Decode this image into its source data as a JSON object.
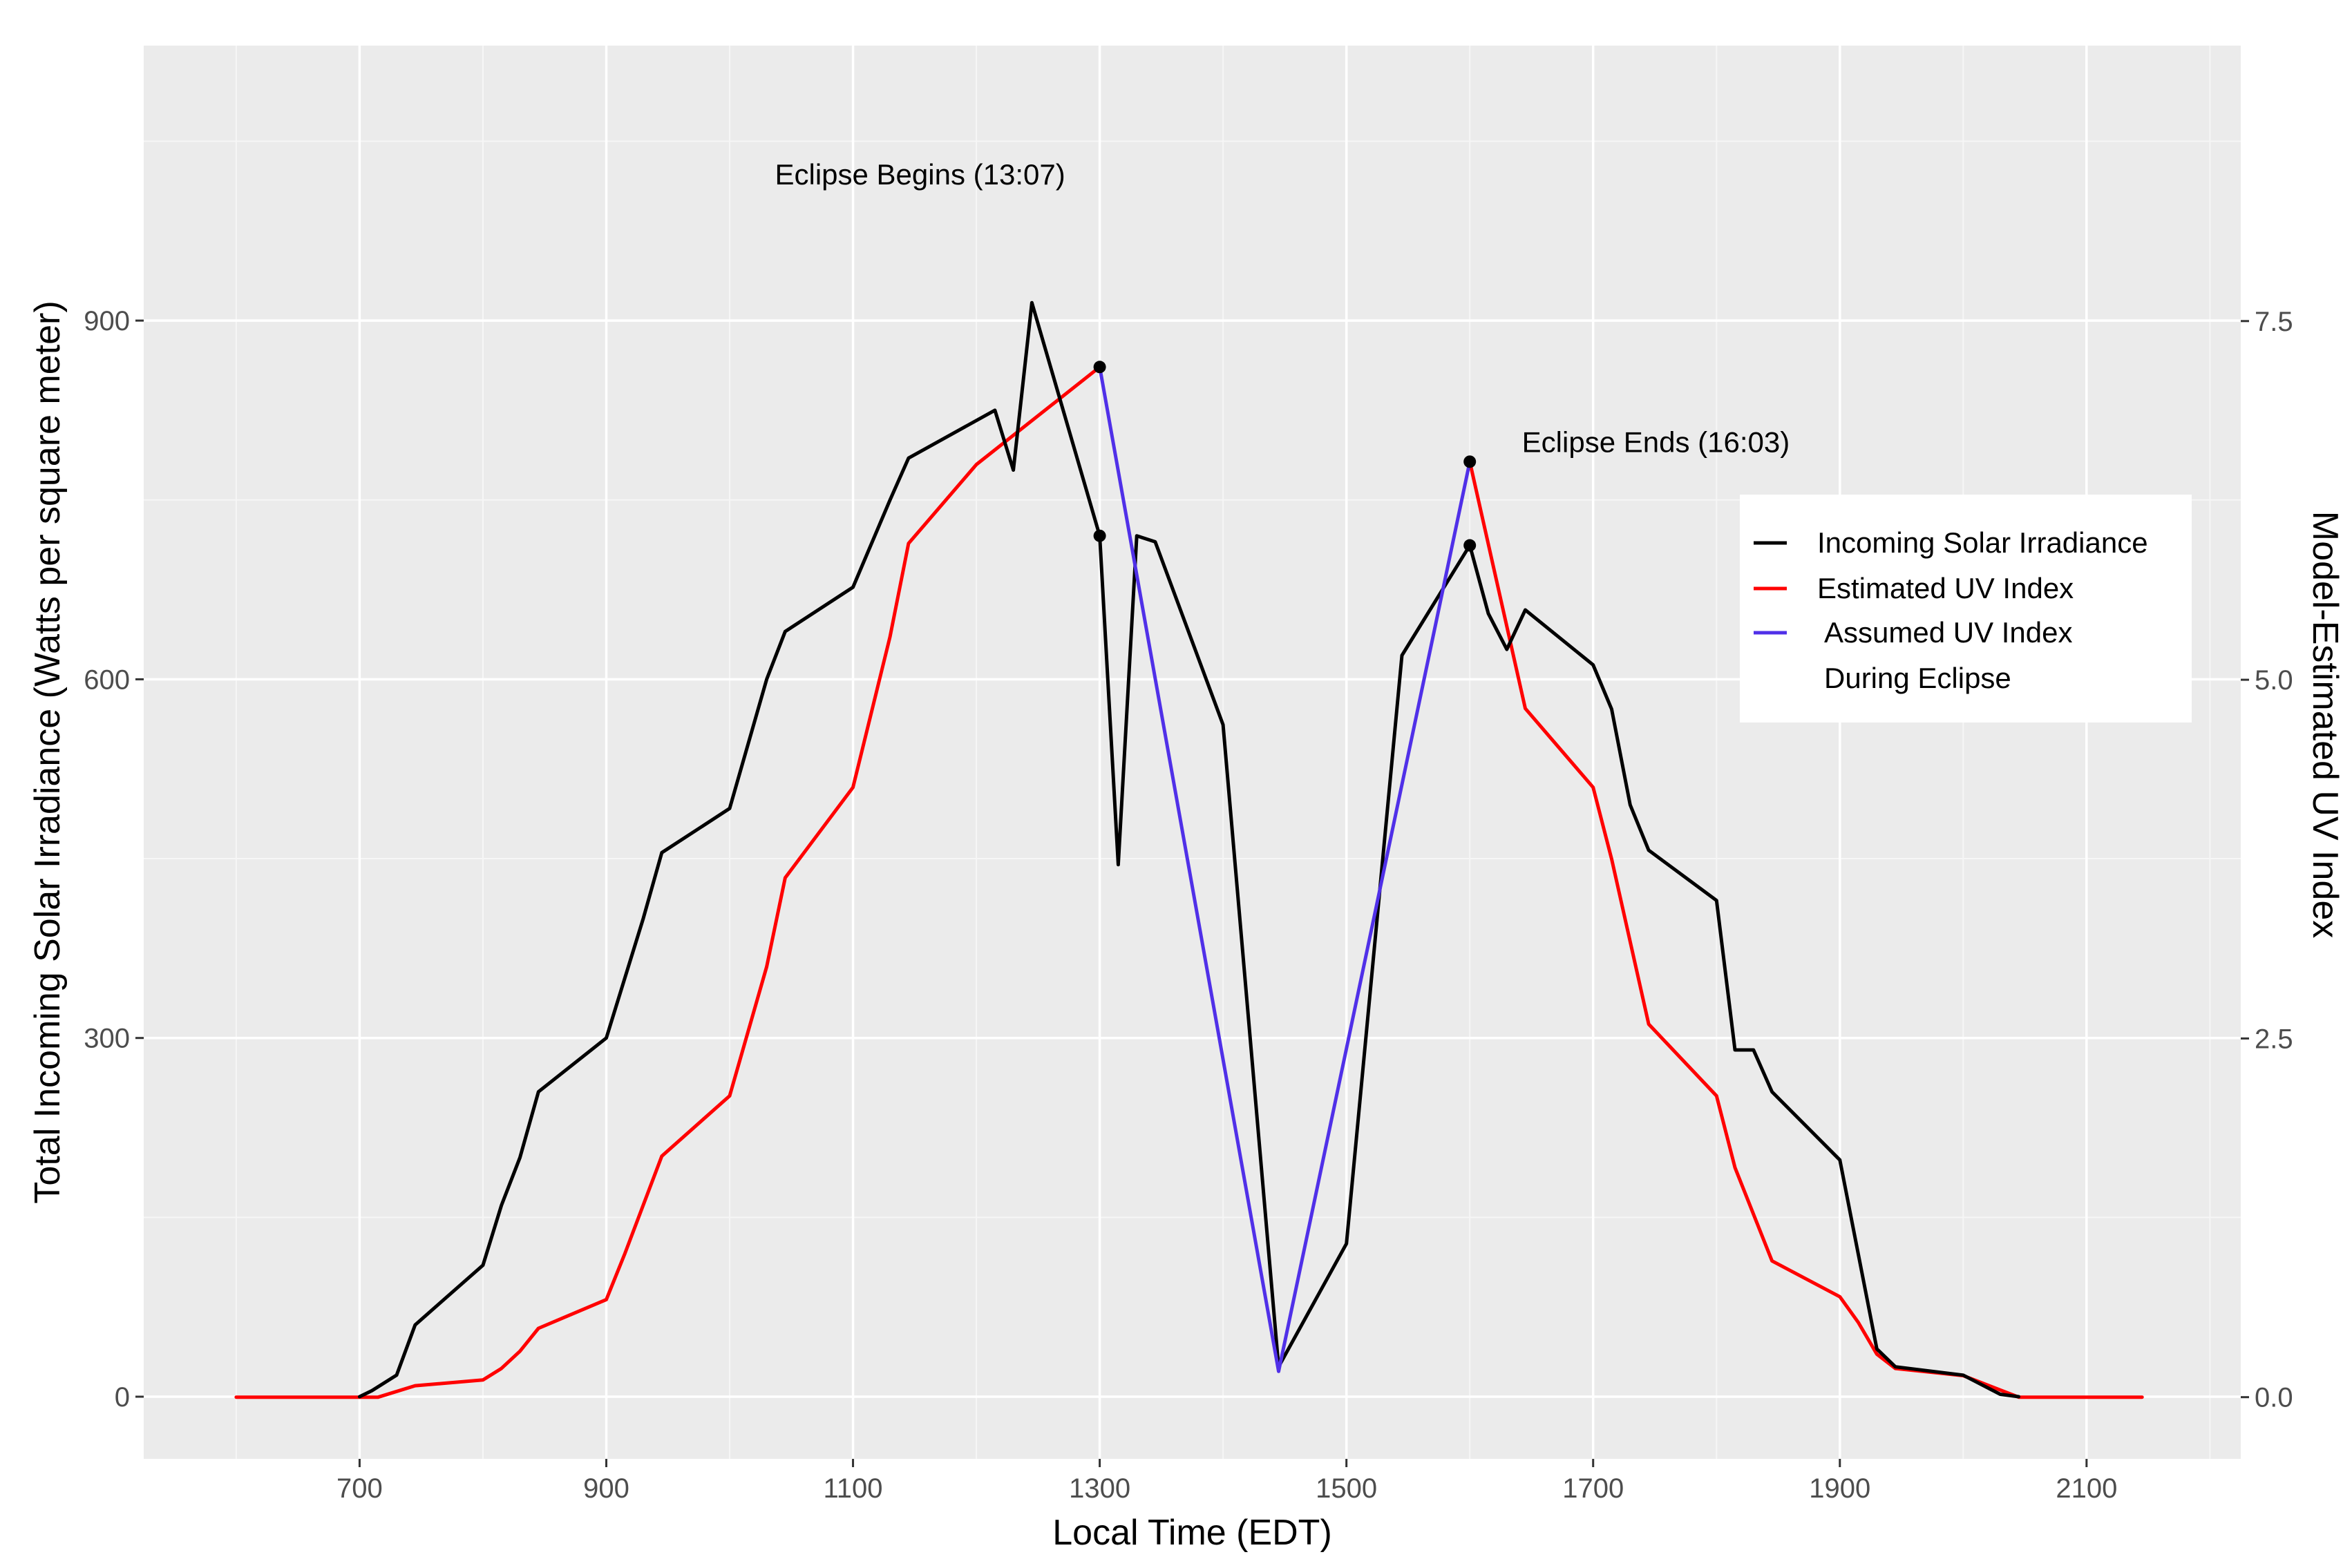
{
  "chart_data": {
    "type": "line",
    "title": "",
    "xlabel": "Local Time (EDT)",
    "ylabel": "Total Incoming Solar Irradiance (Watts per square meter)",
    "y2label": "Model-Estimated UV Index",
    "xlim": [
      525,
      2225
    ],
    "ylim": [
      -52,
      1130
    ],
    "y2lim": [
      -0.43,
      9.42
    ],
    "x_ticks": [
      700,
      900,
      1100,
      1300,
      1500,
      1700,
      1900,
      2100
    ],
    "y_ticks": [
      0,
      300,
      600,
      900
    ],
    "y2_ticks": [
      0.0,
      2.5,
      5.0,
      7.5
    ],
    "x_tick_labels": [
      "700",
      "900",
      "1100",
      "1300",
      "1500",
      "1700",
      "1900",
      "2100"
    ],
    "y_tick_labels": [
      "0",
      "300",
      "600",
      "900"
    ],
    "y2_tick_labels": [
      "0.0",
      "2.5",
      "5.0",
      "7.5"
    ],
    "legend": {
      "position": "right",
      "entries": [
        {
          "label": "Incoming Solar Irradiance",
          "color": "#000000"
        },
        {
          "label": "Estimated UV Index",
          "color": "#ff0000"
        },
        {
          "label": "Assumed UV Index",
          "label2": "During Eclipse",
          "color": "#5030e8"
        }
      ]
    },
    "annotations": [
      {
        "text": "Eclipse Begins (13:07)",
        "x": 1300,
        "y": 1022
      },
      {
        "text": "Eclipse Ends (16:03)",
        "x": 1650,
        "y": 798
      }
    ],
    "series": [
      {
        "name": "Incoming Solar Irradiance",
        "axis": "left",
        "color": "#000000",
        "points": [
          [
            700,
            0
          ],
          [
            710,
            5
          ],
          [
            730,
            18
          ],
          [
            745,
            60
          ],
          [
            800,
            110
          ],
          [
            815,
            160
          ],
          [
            830,
            200
          ],
          [
            845,
            255
          ],
          [
            900,
            300
          ],
          [
            930,
            400
          ],
          [
            945,
            455
          ],
          [
            1000,
            492
          ],
          [
            1030,
            600
          ],
          [
            1045,
            640
          ],
          [
            1100,
            677
          ],
          [
            1130,
            750
          ],
          [
            1145,
            785
          ],
          [
            1215,
            825
          ],
          [
            1230,
            775
          ],
          [
            1245,
            915
          ],
          [
            1300,
            720
          ],
          [
            1315,
            445
          ],
          [
            1330,
            720
          ],
          [
            1345,
            715
          ],
          [
            1400,
            562
          ],
          [
            1445,
            25
          ],
          [
            1500,
            128
          ],
          [
            1545,
            620
          ],
          [
            1600,
            712
          ],
          [
            1615,
            655
          ],
          [
            1630,
            625
          ],
          [
            1645,
            658
          ],
          [
            1700,
            612
          ],
          [
            1715,
            575
          ],
          [
            1730,
            495
          ],
          [
            1745,
            457
          ],
          [
            1800,
            415
          ],
          [
            1815,
            290
          ],
          [
            1830,
            290
          ],
          [
            1845,
            255
          ],
          [
            1900,
            198
          ],
          [
            1930,
            40
          ],
          [
            1945,
            25
          ],
          [
            2000,
            18
          ],
          [
            2030,
            2
          ],
          [
            2045,
            0
          ]
        ]
      },
      {
        "name": "Estimated UV Index",
        "axis": "right",
        "color": "#ff0000",
        "segments": [
          [
            [
              600,
              0.0
            ],
            [
              715,
              0.0
            ],
            [
              745,
              0.08
            ],
            [
              800,
              0.12
            ],
            [
              815,
              0.2
            ],
            [
              830,
              0.32
            ],
            [
              845,
              0.48
            ],
            [
              900,
              0.68
            ],
            [
              915,
              1.0
            ],
            [
              945,
              1.68
            ],
            [
              1000,
              2.1
            ],
            [
              1030,
              3.0
            ],
            [
              1045,
              3.62
            ],
            [
              1100,
              4.25
            ],
            [
              1130,
              5.3
            ],
            [
              1145,
              5.95
            ],
            [
              1200,
              6.5
            ],
            [
              1300,
              7.18
            ]
          ],
          [
            [
              1600,
              6.52
            ],
            [
              1645,
              4.8
            ],
            [
              1700,
              4.25
            ],
            [
              1715,
              3.75
            ],
            [
              1745,
              2.6
            ],
            [
              1800,
              2.1
            ],
            [
              1815,
              1.6
            ],
            [
              1845,
              0.95
            ],
            [
              1900,
              0.7
            ],
            [
              1915,
              0.52
            ],
            [
              1930,
              0.3
            ],
            [
              1945,
              0.2
            ],
            [
              2000,
              0.15
            ],
            [
              2030,
              0.05
            ],
            [
              2045,
              0.0
            ],
            [
              2145,
              0.0
            ]
          ]
        ]
      },
      {
        "name": "Assumed UV Index During Eclipse",
        "axis": "right",
        "color": "#5030e8",
        "points": [
          [
            1300,
            7.18
          ],
          [
            1445,
            0.18
          ],
          [
            1600,
            6.52
          ]
        ]
      }
    ],
    "markers": [
      {
        "x": 1300,
        "y": 720,
        "axis": "left"
      },
      {
        "x": 1300,
        "y": 7.18,
        "axis": "right"
      },
      {
        "x": 1600,
        "y": 712,
        "axis": "left"
      },
      {
        "x": 1600,
        "y": 6.52,
        "axis": "right"
      }
    ]
  }
}
